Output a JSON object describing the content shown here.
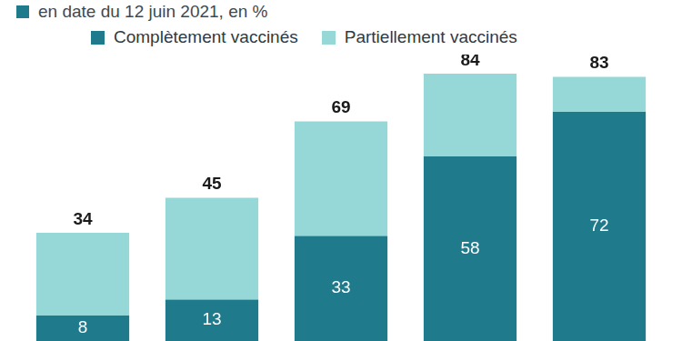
{
  "chart_data": {
    "type": "bar",
    "subtitle": "en date du 12 juin 2021, en %",
    "categories": [
      null,
      null,
      null,
      null,
      null
    ],
    "series": [
      {
        "name": "Complètement vaccinés",
        "color": "#1f7a8c",
        "values": [
          8,
          13,
          33,
          58,
          72
        ],
        "data_labels": true
      },
      {
        "name": "Partiellement vaccinés",
        "color": "#96d8d8",
        "values": [
          26,
          32,
          36,
          26,
          11
        ],
        "data_labels": false
      }
    ],
    "totals": [
      34,
      45,
      69,
      84,
      83
    ],
    "stacked": true,
    "ylim": [
      0,
      90
    ],
    "grid": false,
    "tick_labels": false,
    "legend": "top"
  }
}
